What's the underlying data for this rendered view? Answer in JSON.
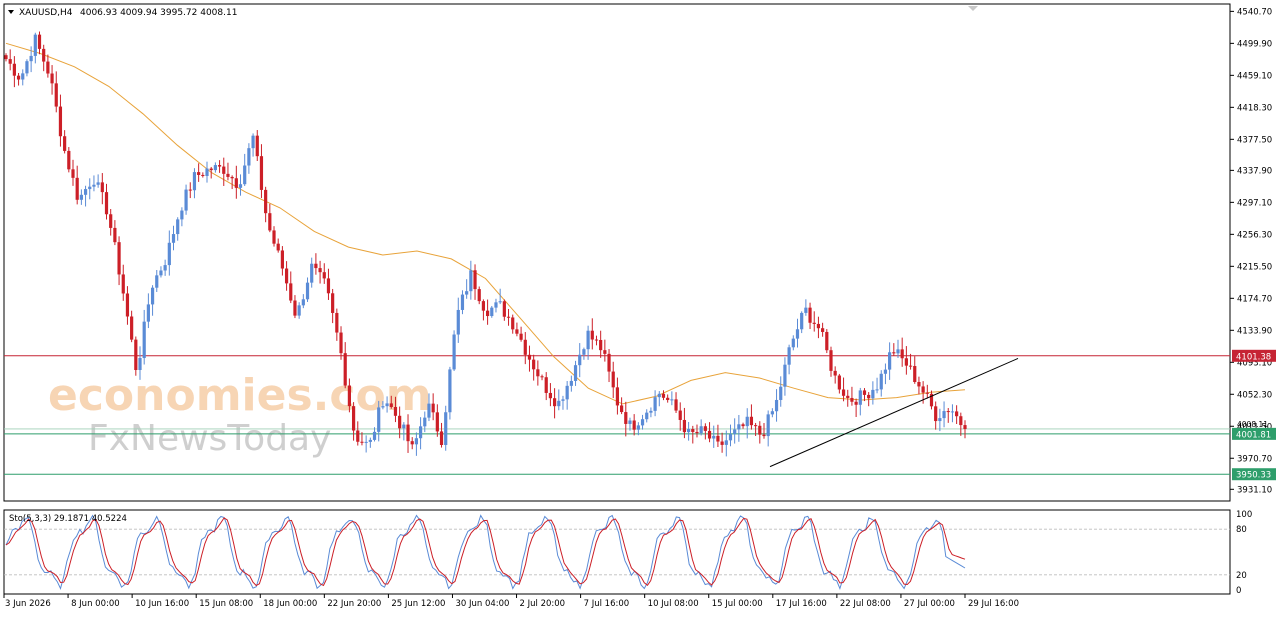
{
  "header": {
    "symbol": "XAUUSD,H4",
    "ohlc": "4006.93 4009.94 3995.72 4008.11"
  },
  "watermark": {
    "line1": "economies.com",
    "line2": "FxNewsToday"
  },
  "chart_data": [
    {
      "type": "candlestick",
      "symbol": "XAUUSD",
      "timeframe": "H4",
      "ylim": [
        3920,
        4545
      ],
      "y_ticks": [
        "4540.70",
        "4499.90",
        "4459.10",
        "4418.30",
        "4377.50",
        "4337.90",
        "4297.10",
        "4256.30",
        "4215.50",
        "4174.70",
        "4133.90",
        "4093.10",
        "4052.30",
        "4011.50",
        "3970.70",
        "3931.10"
      ],
      "x_ticks": [
        "3 Jun 2026",
        "8 Jun 00:00",
        "10 Jun 16:00",
        "15 Jun 08:00",
        "18 Jun 00:00",
        "22 Jun 20:00",
        "25 Jun 12:00",
        "30 Jun 04:00",
        "2 Jul 20:00",
        "7 Jul 16:00",
        "10 Jul 08:00",
        "15 Jul 00:00",
        "17 Jul 16:00",
        "22 Jul 08:00",
        "27 Jul 00:00",
        "29 Jul 16:00"
      ],
      "close_path": [
        4480,
        4455,
        4505,
        4460,
        4365,
        4300,
        4330,
        4285,
        4190,
        4080,
        4190,
        4225,
        4290,
        4330,
        4340,
        4340,
        4320,
        4380,
        4270,
        4215,
        4150,
        4215,
        4190,
        4110,
        4000,
        3985,
        4050,
        4020,
        3980,
        4040,
        3995,
        4150,
        4205,
        4160,
        4165,
        4140,
        4100,
        4065,
        4040,
        4080,
        4130,
        4110,
        4045,
        4010,
        4030,
        4055,
        4035,
        4000,
        4005,
        3985,
        4000,
        4015,
        4000,
        4040,
        4115,
        4160,
        4135,
        4075,
        4045,
        4050,
        4065,
        4110,
        4090,
        4060,
        4025,
        4036,
        4008
      ],
      "high_max": 4515,
      "low_min": 3945,
      "moving_average": [
        4500,
        4487,
        4470,
        4445,
        4410,
        4370,
        4335,
        4310,
        4290,
        4260,
        4240,
        4230,
        4235,
        4225,
        4200,
        4150,
        4100,
        4060,
        4040,
        4050,
        4070,
        4080,
        4073,
        4060,
        4048,
        4045,
        4048,
        4055,
        4058
      ],
      "horizontal_levels": [
        {
          "value": 4101.38,
          "label": "4101.38",
          "color": "#c62434"
        },
        {
          "value": 4001.81,
          "label": "4001.81",
          "color": "#2e9e6b"
        },
        {
          "value": 3950.33,
          "label": "3950.33",
          "color": "#2e9e6b"
        }
      ],
      "current_price_label": "4008.11",
      "trendline": {
        "from": {
          "x": "17 Jul 00:00",
          "y": 3960
        },
        "to": {
          "x": "29 Jul 16:00",
          "y": 4098
        }
      },
      "colors": {
        "bull": "#5a8bd6",
        "bear": "#cc1f27",
        "ma": "#e8a33a"
      }
    },
    {
      "type": "line",
      "name": "Sto(5,3,3)",
      "label": "Sto(5,3,3) 29.1871 40.5224",
      "main": 29.1871,
      "signal": 40.5224,
      "ylim": [
        0,
        100
      ],
      "y_ticks": [
        "100",
        "80",
        "20",
        "0"
      ],
      "levels": [
        80,
        20
      ],
      "colors": {
        "main": "#5a8bd6",
        "signal": "#cc1f27"
      }
    }
  ]
}
